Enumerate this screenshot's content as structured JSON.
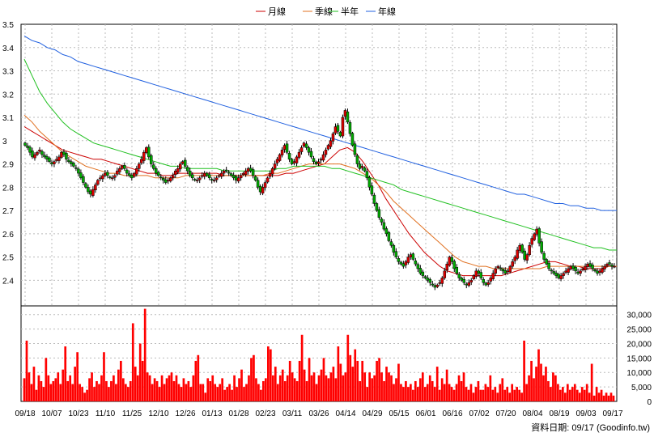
{
  "legend": [
    {
      "label": "月線",
      "color": "#cc0000"
    },
    {
      "label": "季線",
      "color": "#e07020"
    },
    {
      "label": "半年",
      "color": "#20c020"
    },
    {
      "label": "年線",
      "color": "#2060e0"
    }
  ],
  "footer": "資料日期: 09/17 (Goodinfo.tw)",
  "chart_data": [
    {
      "type": "candlestick",
      "y_ticks": [
        "2.4",
        "2.5",
        "2.6",
        "2.7",
        "2.8",
        "2.9",
        "3",
        "3.1",
        "3.2",
        "3.3",
        "3.4",
        "3.5"
      ],
      "ylim": [
        2.29,
        3.5
      ],
      "grid": true,
      "x_ticks": [
        "09/18",
        "10/07",
        "10/23",
        "11/10",
        "11/25",
        "12/10",
        "12/26",
        "01/13",
        "01/28",
        "02/23",
        "03/11",
        "03/26",
        "04/14",
        "04/29",
        "05/15",
        "06/01",
        "06/16",
        "07/02",
        "07/20",
        "08/04",
        "08/19",
        "09/03",
        "09/17"
      ],
      "close": [
        2.98,
        2.97,
        2.95,
        2.93,
        2.94,
        2.95,
        2.96,
        2.94,
        2.93,
        2.92,
        2.91,
        2.9,
        2.91,
        2.92,
        2.93,
        2.95,
        2.94,
        2.92,
        2.91,
        2.9,
        2.89,
        2.88,
        2.86,
        2.84,
        2.82,
        2.8,
        2.78,
        2.77,
        2.79,
        2.81,
        2.83,
        2.84,
        2.85,
        2.86,
        2.85,
        2.84,
        2.84,
        2.85,
        2.87,
        2.88,
        2.89,
        2.88,
        2.86,
        2.85,
        2.84,
        2.86,
        2.88,
        2.9,
        2.92,
        2.95,
        2.97,
        2.93,
        2.9,
        2.88,
        2.86,
        2.85,
        2.84,
        2.83,
        2.82,
        2.83,
        2.84,
        2.85,
        2.87,
        2.88,
        2.9,
        2.91,
        2.89,
        2.87,
        2.85,
        2.84,
        2.83,
        2.83,
        2.84,
        2.85,
        2.86,
        2.85,
        2.84,
        2.83,
        2.83,
        2.84,
        2.85,
        2.86,
        2.87,
        2.87,
        2.86,
        2.85,
        2.84,
        2.83,
        2.84,
        2.85,
        2.86,
        2.87,
        2.88,
        2.87,
        2.85,
        2.83,
        2.8,
        2.78,
        2.8,
        2.82,
        2.84,
        2.86,
        2.88,
        2.9,
        2.92,
        2.94,
        2.96,
        2.98,
        2.95,
        2.92,
        2.9,
        2.91,
        2.93,
        2.95,
        2.97,
        2.99,
        2.97,
        2.95,
        2.93,
        2.91,
        2.9,
        2.91,
        2.92,
        2.94,
        2.96,
        2.98,
        3.0,
        3.03,
        3.06,
        3.04,
        3.02,
        3.1,
        3.13,
        3.08,
        3.03,
        2.98,
        2.94,
        2.9,
        2.88,
        2.89,
        2.87,
        2.84,
        2.8,
        2.77,
        2.73,
        2.7,
        2.67,
        2.65,
        2.62,
        2.6,
        2.57,
        2.55,
        2.52,
        2.5,
        2.48,
        2.47,
        2.46,
        2.48,
        2.5,
        2.51,
        2.49,
        2.47,
        2.45,
        2.43,
        2.42,
        2.41,
        2.4,
        2.39,
        2.38,
        2.37,
        2.38,
        2.39,
        2.41,
        2.44,
        2.47,
        2.5,
        2.48,
        2.45,
        2.43,
        2.41,
        2.4,
        2.39,
        2.38,
        2.39,
        2.4,
        2.42,
        2.44,
        2.43,
        2.41,
        2.39,
        2.38,
        2.39,
        2.41,
        2.43,
        2.45,
        2.46,
        2.45,
        2.44,
        2.43,
        2.44,
        2.46,
        2.48,
        2.5,
        2.53,
        2.55,
        2.52,
        2.49,
        2.51,
        2.55,
        2.58,
        2.6,
        2.62,
        2.56,
        2.52,
        2.49,
        2.47,
        2.45,
        2.44,
        2.43,
        2.42,
        2.41,
        2.42,
        2.43,
        2.44,
        2.45,
        2.46,
        2.45,
        2.44,
        2.43,
        2.44,
        2.45,
        2.46,
        2.47,
        2.46,
        2.45,
        2.44,
        2.43,
        2.44,
        2.45,
        2.46,
        2.47,
        2.47,
        2.46,
        2.46
      ],
      "series": [
        {
          "name": "月線",
          "values": [
            3.06,
            3.04,
            3.02,
            3.0,
            2.98,
            2.96,
            2.95,
            2.94,
            2.93,
            2.92,
            2.92,
            2.91,
            2.9,
            2.89,
            2.88,
            2.87,
            2.86,
            2.86,
            2.85,
            2.85,
            2.86,
            2.86,
            2.86,
            2.86,
            2.86,
            2.86,
            2.85,
            2.85,
            2.85,
            2.85,
            2.85,
            2.85,
            2.85,
            2.85,
            2.86,
            2.86,
            2.87,
            2.88,
            2.89,
            2.9,
            2.93,
            2.96,
            2.97,
            2.95,
            2.91,
            2.86,
            2.81,
            2.75,
            2.7,
            2.65,
            2.6,
            2.56,
            2.52,
            2.49,
            2.46,
            2.44,
            2.43,
            2.42,
            2.42,
            2.42,
            2.42,
            2.42,
            2.42,
            2.43,
            2.44,
            2.45,
            2.46,
            2.47,
            2.48,
            2.48,
            2.47,
            2.46,
            2.46,
            2.45,
            2.45,
            2.45,
            2.46,
            2.46
          ]
        },
        {
          "name": "季線",
          "values": [
            3.11,
            3.08,
            3.04,
            3.01,
            2.98,
            2.95,
            2.93,
            2.91,
            2.89,
            2.88,
            2.87,
            2.86,
            2.86,
            2.85,
            2.85,
            2.85,
            2.85,
            2.84,
            2.84,
            2.84,
            2.84,
            2.85,
            2.85,
            2.85,
            2.85,
            2.85,
            2.85,
            2.85,
            2.85,
            2.85,
            2.85,
            2.85,
            2.86,
            2.86,
            2.87,
            2.88,
            2.89,
            2.9,
            2.9,
            2.9,
            2.9,
            2.9,
            2.89,
            2.88,
            2.86,
            2.84,
            2.81,
            2.78,
            2.74,
            2.71,
            2.68,
            2.65,
            2.62,
            2.59,
            2.56,
            2.53,
            2.5,
            2.48,
            2.47,
            2.46,
            2.46,
            2.45,
            2.45,
            2.45,
            2.45,
            2.45,
            2.45,
            2.45,
            2.46,
            2.46,
            2.46,
            2.46,
            2.46,
            2.46,
            2.46,
            2.46,
            2.46,
            2.46
          ]
        },
        {
          "name": "半年",
          "values": [
            3.35,
            3.28,
            3.21,
            3.16,
            3.12,
            3.08,
            3.05,
            3.03,
            3.01,
            2.99,
            2.98,
            2.97,
            2.96,
            2.95,
            2.94,
            2.93,
            2.92,
            2.91,
            2.9,
            2.89,
            2.89,
            2.88,
            2.88,
            2.88,
            2.88,
            2.88,
            2.87,
            2.87,
            2.87,
            2.87,
            2.87,
            2.87,
            2.87,
            2.88,
            2.88,
            2.89,
            2.89,
            2.89,
            2.89,
            2.89,
            2.88,
            2.88,
            2.87,
            2.86,
            2.85,
            2.84,
            2.83,
            2.82,
            2.81,
            2.79,
            2.78,
            2.77,
            2.76,
            2.75,
            2.74,
            2.73,
            2.72,
            2.71,
            2.7,
            2.69,
            2.68,
            2.67,
            2.66,
            2.65,
            2.64,
            2.63,
            2.62,
            2.61,
            2.6,
            2.59,
            2.58,
            2.57,
            2.56,
            2.55,
            2.54,
            2.54,
            2.53,
            2.53
          ]
        },
        {
          "name": "年線",
          "values": [
            3.45,
            3.43,
            3.42,
            3.4,
            3.39,
            3.37,
            3.36,
            3.34,
            3.33,
            3.32,
            3.31,
            3.3,
            3.29,
            3.28,
            3.27,
            3.26,
            3.25,
            3.24,
            3.23,
            3.22,
            3.21,
            3.2,
            3.19,
            3.18,
            3.17,
            3.16,
            3.15,
            3.14,
            3.13,
            3.12,
            3.11,
            3.1,
            3.09,
            3.08,
            3.07,
            3.06,
            3.05,
            3.04,
            3.03,
            3.02,
            3.01,
            3.0,
            2.99,
            2.98,
            2.97,
            2.96,
            2.95,
            2.94,
            2.93,
            2.92,
            2.91,
            2.9,
            2.89,
            2.88,
            2.87,
            2.86,
            2.85,
            2.84,
            2.83,
            2.82,
            2.81,
            2.8,
            2.79,
            2.78,
            2.77,
            2.77,
            2.76,
            2.75,
            2.74,
            2.73,
            2.73,
            2.72,
            2.72,
            2.71,
            2.71,
            2.7,
            2.7,
            2.7
          ]
        }
      ]
    },
    {
      "type": "bar",
      "series_name": "成交量",
      "y_ticks": [
        "0",
        "5,000",
        "10,000",
        "15,000",
        "20,000",
        "25,000",
        "30,000"
      ],
      "ylim": [
        0,
        33000
      ],
      "x_ticks": [
        "09/18",
        "10/07",
        "10/23",
        "11/10",
        "11/25",
        "12/10",
        "12/26",
        "01/13",
        "01/28",
        "02/23",
        "03/11",
        "03/26",
        "04/14",
        "04/29",
        "05/15",
        "06/01",
        "06/16",
        "07/02",
        "07/20",
        "08/04",
        "08/19",
        "09/03",
        "09/17"
      ],
      "values": [
        8000,
        21000,
        10000,
        6000,
        12000,
        4000,
        9000,
        7000,
        5000,
        15000,
        9000,
        6000,
        7000,
        8000,
        10000,
        6000,
        11000,
        19000,
        7000,
        9000,
        6000,
        12000,
        17000,
        6000,
        5000,
        3000,
        4000,
        8000,
        10000,
        5000,
        7000,
        6000,
        9000,
        17000,
        7000,
        5000,
        7000,
        9000,
        6000,
        11000,
        14000,
        8000,
        6000,
        5000,
        7000,
        27000,
        12000,
        9000,
        20000,
        14000,
        32000,
        10000,
        9000,
        6000,
        8000,
        7000,
        5000,
        9000,
        6000,
        8000,
        9000,
        10000,
        7000,
        9000,
        6000,
        5000,
        8000,
        6000,
        7000,
        5000,
        9000,
        14000,
        16000,
        6000,
        6000,
        3000,
        8000,
        7000,
        9000,
        6000,
        5000,
        6000,
        8000,
        4000,
        5000,
        6000,
        4000,
        9000,
        5000,
        8000,
        11000,
        5000,
        6000,
        9000,
        15000,
        16000,
        8000,
        6000,
        4000,
        7000,
        8000,
        19000,
        18000,
        9000,
        12000,
        6000,
        9000,
        11000,
        7000,
        9000,
        14000,
        10000,
        8000,
        7000,
        14000,
        23000,
        11000,
        7000,
        15000,
        9000,
        10000,
        6000,
        9000,
        11000,
        15000,
        9000,
        8000,
        10000,
        12000,
        8000,
        19000,
        13000,
        9000,
        10000,
        23000,
        16000,
        12000,
        18000,
        14000,
        7000,
        14000,
        10000,
        5000,
        10000,
        8000,
        9000,
        14000,
        15000,
        10000,
        7000,
        12000,
        10000,
        9000,
        6000,
        8000,
        13000,
        6000,
        5000,
        7000,
        5000,
        6000,
        4000,
        7000,
        5000,
        8000,
        10000,
        5000,
        6000,
        9000,
        7000,
        5000,
        12000,
        4000,
        8000,
        6000,
        11000,
        6000,
        5000,
        4000,
        6000,
        9000,
        7000,
        10000,
        5000,
        4000,
        6000,
        3000,
        5000,
        7000,
        4000,
        4000,
        6000,
        5000,
        9000,
        4000,
        5000,
        3000,
        6000,
        8000,
        4000,
        5000,
        3000,
        6000,
        4000,
        5000,
        4000,
        3000,
        21000,
        6000,
        9000,
        14000,
        8000,
        12000,
        18000,
        13000,
        9000,
        12000,
        7000,
        5000,
        10000,
        9000,
        6000,
        4000,
        5000,
        3000,
        6000,
        4000,
        5000,
        6000,
        4000,
        3000,
        5000,
        4000,
        6000,
        3000,
        13000,
        2000,
        5000,
        3000,
        4000,
        2000,
        3000,
        2000,
        3000,
        2000
      ]
    }
  ]
}
